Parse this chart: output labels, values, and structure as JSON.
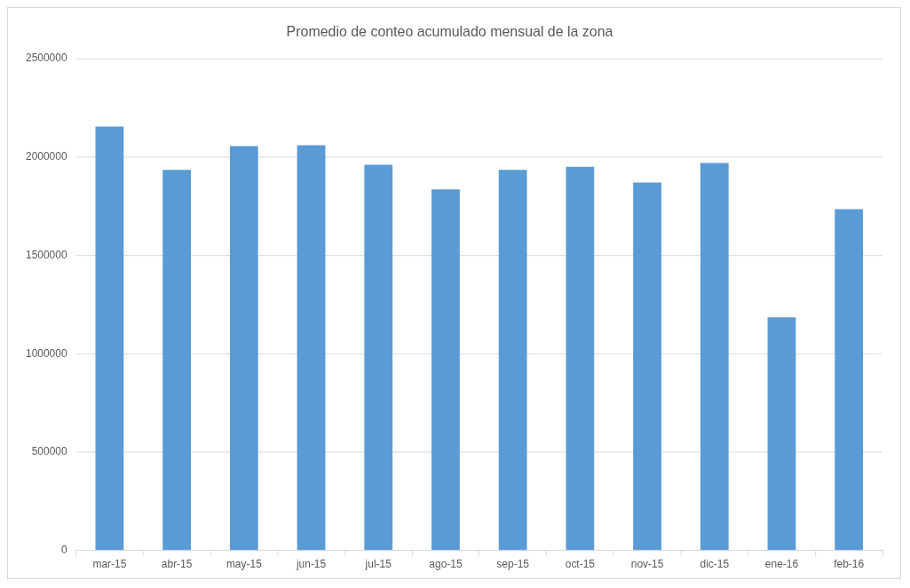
{
  "chart_data": {
    "type": "bar",
    "title": "Promedio de conteo acumulado mensual de la zona",
    "categories": [
      "mar-15",
      "abr-15",
      "may-15",
      "jun-15",
      "jul-15",
      "ago-15",
      "sep-15",
      "oct-15",
      "nov-15",
      "dic-15",
      "ene-16",
      "feb-16"
    ],
    "values": [
      2155000,
      1935000,
      2055000,
      2060000,
      1960000,
      1835000,
      1935000,
      1950000,
      1870000,
      1970000,
      1185000,
      1735000
    ],
    "color": "#5b9bd5",
    "ylim": [
      0,
      2500000
    ],
    "yticks": [
      0,
      500000,
      1000000,
      1500000,
      2000000,
      2500000
    ],
    "grid": "y",
    "legend": false
  }
}
